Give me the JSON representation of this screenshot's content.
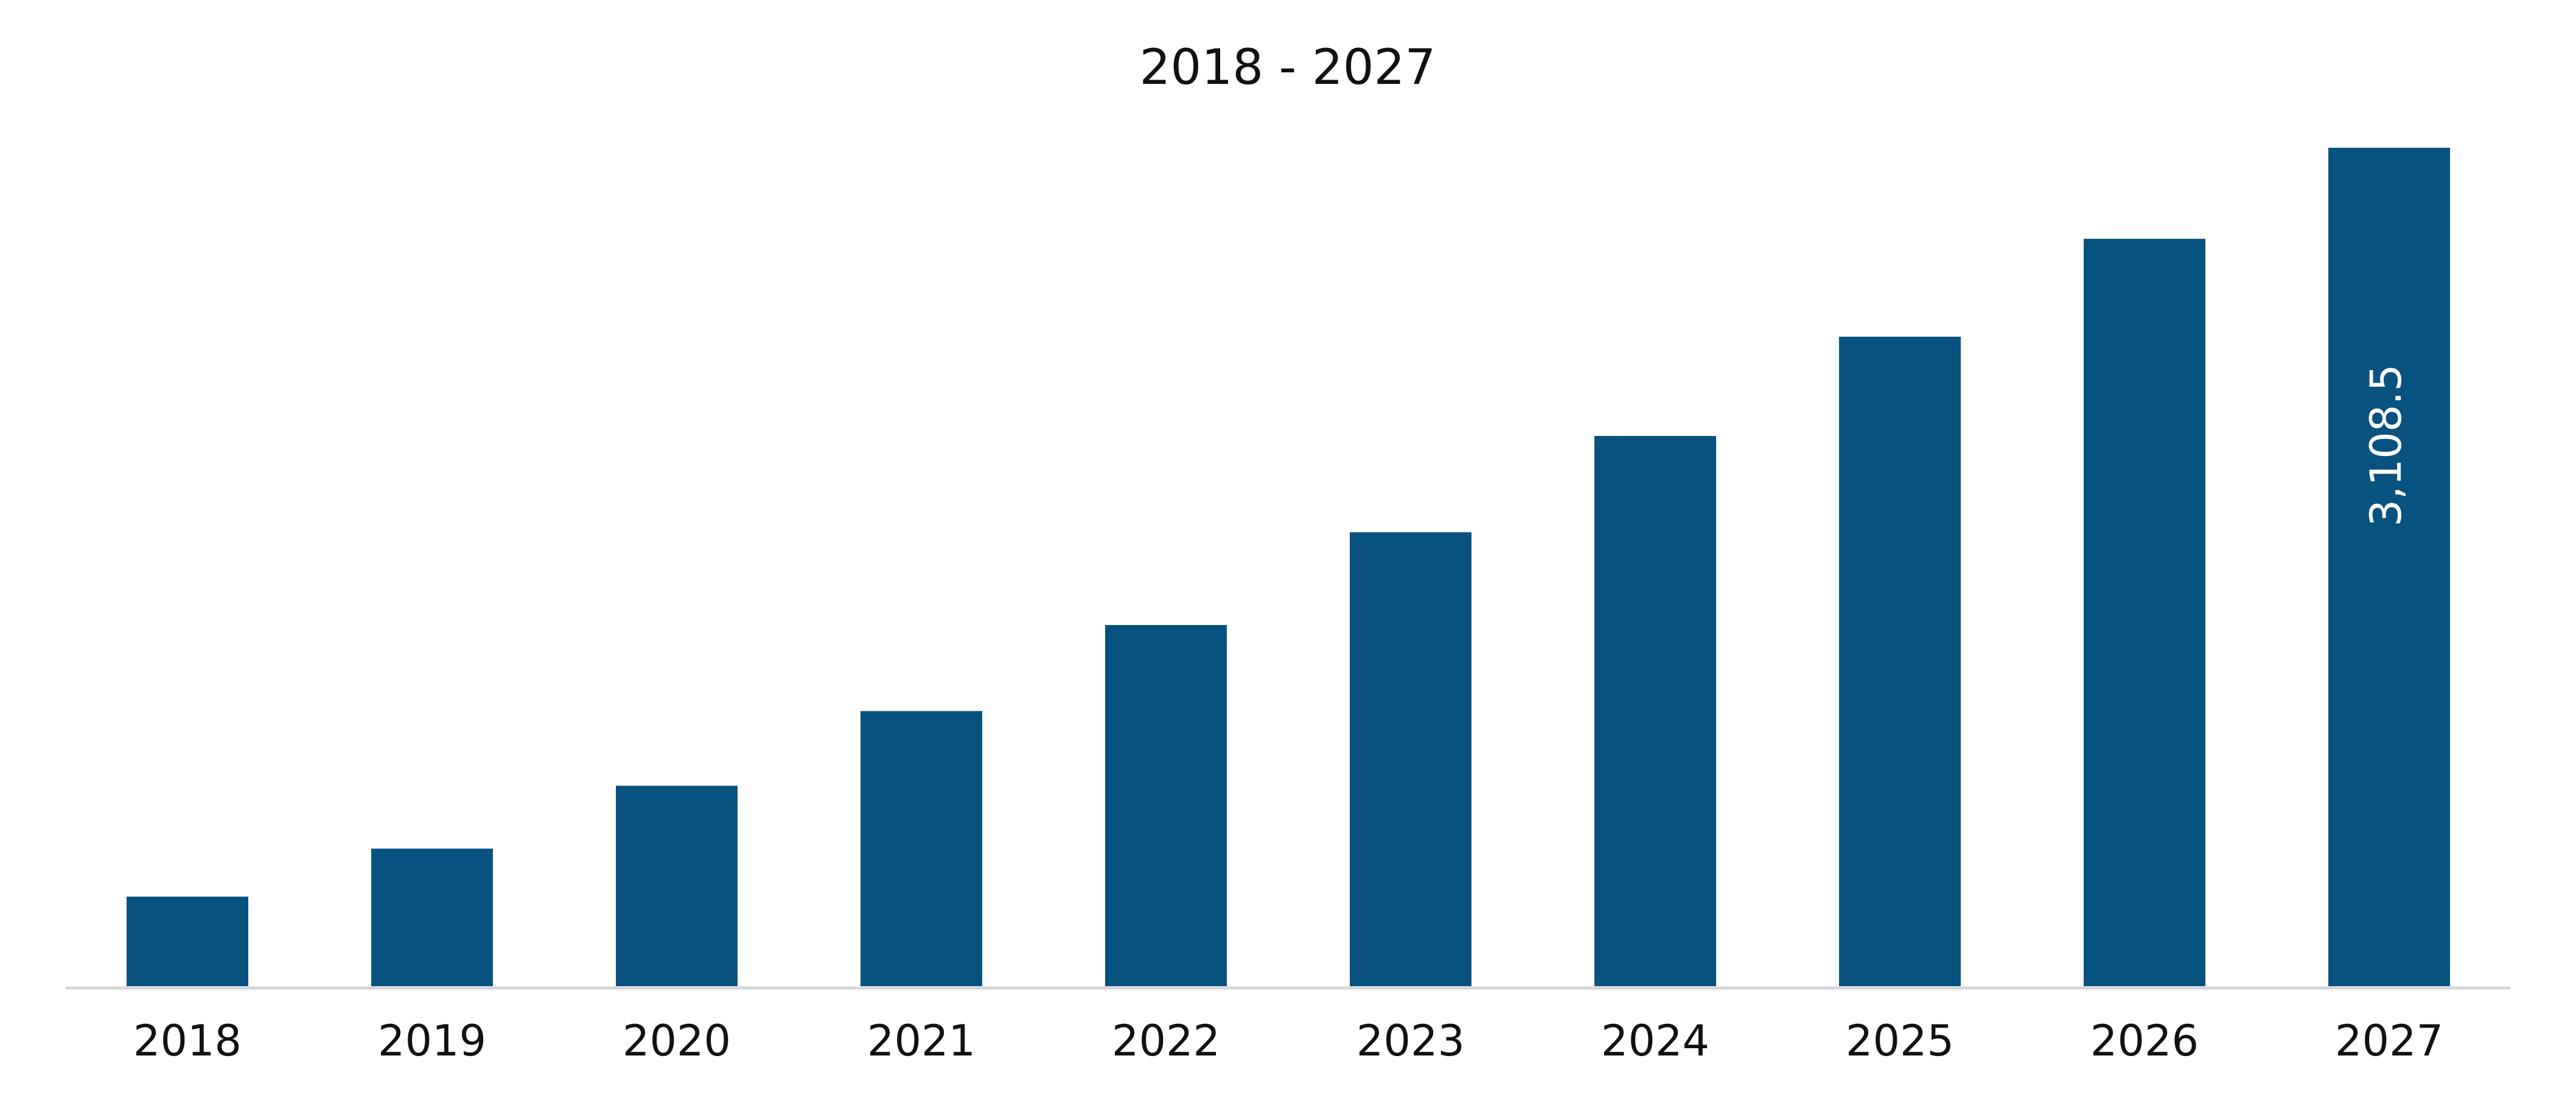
{
  "chart_data": {
    "type": "bar",
    "title": "2018 - 2027",
    "categories": [
      "2018",
      "2019",
      "2020",
      "2021",
      "2022",
      "2023",
      "2024",
      "2025",
      "2026",
      "2027"
    ],
    "values": [
      332,
      510,
      743,
      1020,
      1339,
      1683,
      2040,
      2408,
      2771,
      3108.5
    ],
    "value_labels": [
      null,
      null,
      null,
      null,
      null,
      null,
      null,
      null,
      null,
      "3,108.5"
    ],
    "color": "#08527f"
  }
}
